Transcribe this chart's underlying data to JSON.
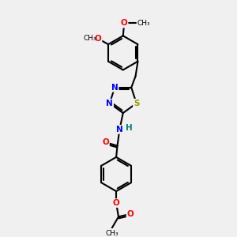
{
  "bg_color": "#f0f0f0",
  "bond_color": "#000000",
  "bond_width": 1.5,
  "N_color": "#0000ff",
  "S_color": "#999900",
  "O_color": "#ff0000",
  "H_color": "#008080",
  "text_fontsize": 7.5,
  "figsize": [
    3.0,
    3.0
  ],
  "dpi": 100,
  "xlim": [
    0,
    10
  ],
  "ylim": [
    0,
    10
  ]
}
